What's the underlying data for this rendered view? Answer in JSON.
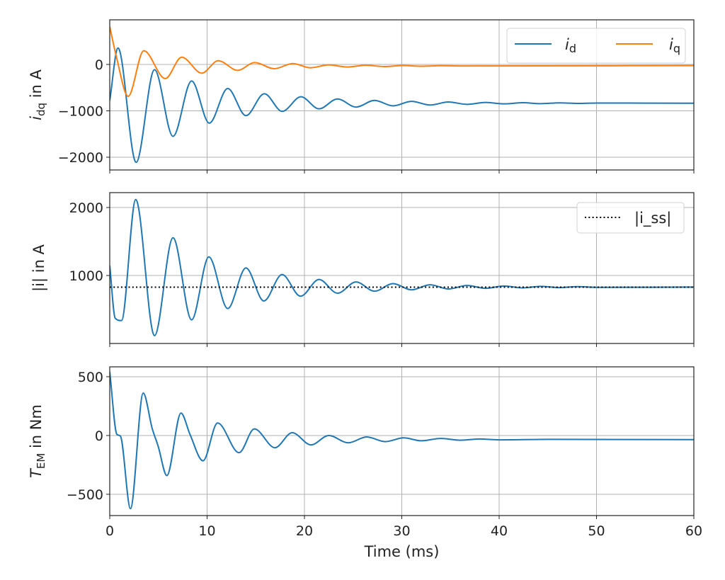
{
  "colors": {
    "blue": "#1f77b4",
    "orange": "#ff7f0e",
    "grid": "#b0b0b0",
    "ss": "#000000"
  },
  "chart_data": [
    {
      "type": "line",
      "ylabel": {
        "var": "i",
        "sub": "dq",
        "rest": " in A"
      },
      "xlim": [
        0,
        60
      ],
      "ylim": [
        -2275,
        962
      ],
      "yticks": [
        {
          "v": 0,
          "label": "0"
        },
        {
          "v": -1000,
          "label": "−1000"
        },
        {
          "v": -2000,
          "label": "−2000"
        }
      ],
      "grid": true,
      "legend": {
        "placement": "top-right",
        "columns": 2
      },
      "series": [
        {
          "name": "i_d",
          "legend_var": "i",
          "legend_sub": "d",
          "color": "blue",
          "x": [
            0,
            0.85,
            2.71,
            4.6,
            6.5,
            8.41,
            10.23,
            12.12,
            13.99,
            15.88,
            17.72,
            19.64,
            21.5,
            23.4,
            25.3,
            27.2,
            29.1,
            31.0,
            32.9,
            34.8,
            36.7,
            38.6,
            40.5,
            42.4,
            44.3,
            46.2,
            48.1,
            50,
            60
          ],
          "y": [
            -780,
            355,
            -2110,
            -112,
            -1550,
            -357,
            -1265,
            -519,
            -1104,
            -631,
            -1012,
            -697,
            -957,
            -744,
            -919,
            -775,
            -893,
            -796,
            -875,
            -810,
            -860,
            -818,
            -850,
            -825,
            -845,
            -828,
            -840,
            -832,
            -835
          ]
        },
        {
          "name": "i_q",
          "legend_var": "i",
          "legend_sub": "q",
          "color": "orange",
          "x": [
            0,
            0.7,
            1.89,
            3.5,
            5.7,
            7.4,
            9.45,
            11.15,
            13.14,
            14.9,
            16.9,
            18.8,
            20.6,
            22.5,
            24.4,
            26.3,
            28.2,
            30.1,
            32,
            34,
            36,
            60
          ],
          "y": [
            814,
            150,
            -687,
            295,
            -305,
            157,
            -188,
            81,
            -127,
            41,
            -92,
            20,
            -72,
            -10,
            -55,
            -18,
            -45,
            -22,
            -38,
            -26,
            -32,
            -25
          ]
        }
      ]
    },
    {
      "type": "line",
      "ylabel": {
        "var": "",
        "sub": "",
        "rest": "|i| in A"
      },
      "xlim": [
        0,
        60
      ],
      "ylim": [
        0,
        2219
      ],
      "yticks": [
        {
          "v": 1000,
          "label": "1000"
        },
        {
          "v": 2000,
          "label": "2000"
        }
      ],
      "grid": true,
      "legend": {
        "placement": "top-right",
        "columns": 1
      },
      "series": [
        {
          "name": "",
          "color": "blue",
          "x": [
            0,
            0.56,
            1.21,
            2.67,
            4.6,
            6.5,
            8.41,
            10.18,
            12.12,
            13.99,
            15.83,
            17.7,
            19.6,
            21.5,
            23.4,
            25.3,
            27.2,
            29.1,
            31,
            32.9,
            34.8,
            36.7,
            38.6,
            40.5,
            42.4,
            44.3,
            46.2,
            48.1,
            50,
            60
          ],
          "y": [
            1146,
            372,
            337,
            2118,
            115,
            1555,
            347,
            1274,
            514,
            1111,
            625,
            1014,
            695,
            941,
            739,
            905,
            769,
            880,
            789,
            864,
            802,
            853,
            811,
            845,
            818,
            840,
            822,
            836,
            826,
            830
          ]
        },
        {
          "name": "|i_ss|",
          "legend_label": "|i_ss|",
          "color": "ss",
          "dotted": true,
          "x": [
            0,
            60
          ],
          "y": [
            828,
            828
          ]
        }
      ]
    },
    {
      "type": "line",
      "ylabel": {
        "var": "T",
        "sub": "EM",
        "rest": " in Nm"
      },
      "xlabel": "Time (ms)",
      "xlim": [
        0,
        60
      ],
      "ylim": [
        -681,
        584
      ],
      "xticks": [
        "0",
        "10",
        "20",
        "30",
        "40",
        "50",
        "60"
      ],
      "yticks": [
        {
          "v": 500,
          "label": "500"
        },
        {
          "v": 0,
          "label": "0"
        },
        {
          "v": -500,
          "label": "−500"
        }
      ],
      "grid": true,
      "series": [
        {
          "name": "",
          "color": "blue",
          "x": [
            0,
            0.73,
            1.09,
            2.13,
            3.44,
            4.36,
            4.97,
            5.87,
            7.32,
            8.24,
            9.58,
            11.08,
            13.28,
            14.86,
            16.97,
            18.74,
            20.68,
            22.5,
            24.5,
            26.4,
            28.3,
            30.2,
            32,
            34,
            36,
            38,
            40,
            45,
            60
          ],
          "y": [
            542,
            10,
            -4,
            -622,
            361,
            60,
            -90,
            -341,
            191,
            10,
            -215,
            107,
            -146,
            56,
            -104,
            24,
            -80,
            0,
            -62,
            -12,
            -52,
            -20,
            -45,
            -25,
            -40,
            -30,
            -37,
            -33,
            -35
          ]
        }
      ]
    }
  ]
}
